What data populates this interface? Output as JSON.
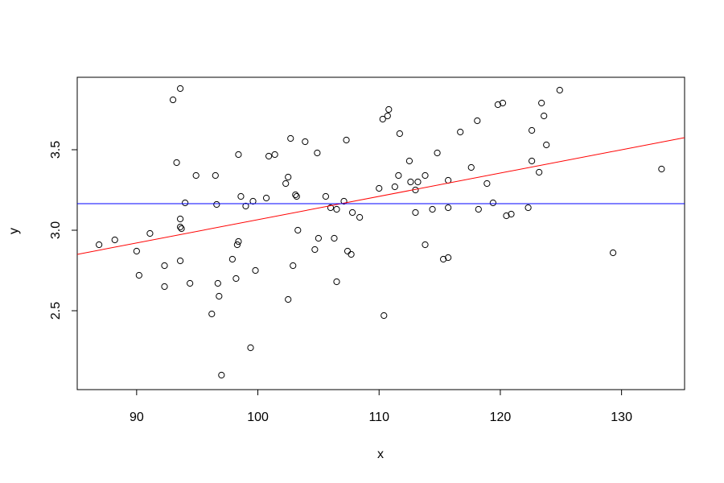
{
  "chart_data": {
    "type": "scatter",
    "x_label": "x",
    "y_label": "y",
    "x": [
      86.9,
      88.2,
      90.0,
      90.2,
      91.1,
      92.3,
      92.3,
      93.0,
      93.3,
      93.6,
      93.6,
      93.6,
      93.7,
      93.6,
      94.0,
      94.4,
      94.9,
      96.2,
      96.5,
      96.6,
      96.7,
      96.8,
      97.0,
      97.9,
      98.2,
      98.3,
      98.4,
      98.4,
      98.6,
      99.0,
      99.4,
      99.6,
      99.8,
      100.7,
      100.9,
      101.4,
      102.3,
      102.5,
      102.5,
      102.7,
      102.9,
      103.1,
      103.2,
      103.3,
      103.9,
      104.7,
      104.9,
      105.0,
      105.6,
      106.0,
      106.3,
      106.5,
      106.5,
      107.1,
      107.3,
      107.4,
      107.7,
      107.8,
      108.4,
      110.0,
      110.3,
      110.4,
      110.7,
      110.8,
      111.3,
      111.6,
      111.7,
      112.5,
      112.6,
      113.0,
      113.0,
      113.2,
      113.8,
      113.8,
      114.4,
      114.8,
      115.3,
      115.7,
      115.7,
      115.7,
      116.7,
      117.6,
      118.1,
      118.2,
      118.9,
      119.4,
      119.8,
      120.2,
      120.5,
      120.9,
      122.3,
      122.6,
      122.6,
      123.2,
      123.4,
      123.6,
      123.8,
      124.9,
      129.3,
      133.3
    ],
    "values": [
      2.91,
      2.94,
      2.87,
      2.72,
      2.98,
      2.78,
      2.65,
      3.81,
      3.42,
      3.88,
      3.07,
      3.02,
      3.01,
      2.81,
      3.17,
      2.67,
      3.34,
      2.48,
      3.34,
      3.16,
      2.67,
      2.59,
      2.1,
      2.82,
      2.7,
      2.91,
      3.47,
      2.93,
      3.21,
      3.15,
      2.27,
      3.18,
      2.75,
      3.2,
      3.46,
      3.47,
      3.29,
      2.57,
      3.33,
      3.57,
      2.78,
      3.22,
      3.21,
      3.0,
      3.55,
      2.88,
      3.48,
      2.95,
      3.21,
      3.14,
      2.95,
      2.68,
      3.13,
      3.18,
      3.56,
      2.87,
      2.85,
      3.11,
      3.08,
      3.26,
      3.69,
      2.47,
      3.71,
      3.75,
      3.27,
      3.34,
      3.6,
      3.43,
      3.3,
      3.25,
      3.11,
      3.3,
      3.34,
      2.91,
      3.13,
      3.48,
      2.82,
      3.31,
      2.83,
      3.14,
      3.61,
      3.39,
      3.68,
      3.13,
      3.29,
      3.17,
      3.78,
      3.79,
      3.09,
      3.1,
      3.14,
      3.62,
      3.43,
      3.36,
      3.79,
      3.71,
      3.53,
      3.87,
      2.86,
      3.38
    ],
    "color": "#000000",
    "lines": [
      {
        "x": [
          85.1,
          135.2
        ],
        "values": [
          2.85,
          3.575
        ],
        "color": "#ff0000"
      },
      {
        "x": [
          85.1,
          135.2
        ],
        "values": [
          3.165,
          3.165
        ],
        "color": "#0000ff"
      }
    ],
    "xlim": [
      85.1,
      135.2
    ],
    "ylim": [
      2.01,
      3.95
    ],
    "xticks": [
      90,
      100,
      110,
      120,
      130
    ],
    "yticks": [
      2.5,
      {
        "value": 3,
        "label": "3.0"
      },
      3.5
    ]
  }
}
